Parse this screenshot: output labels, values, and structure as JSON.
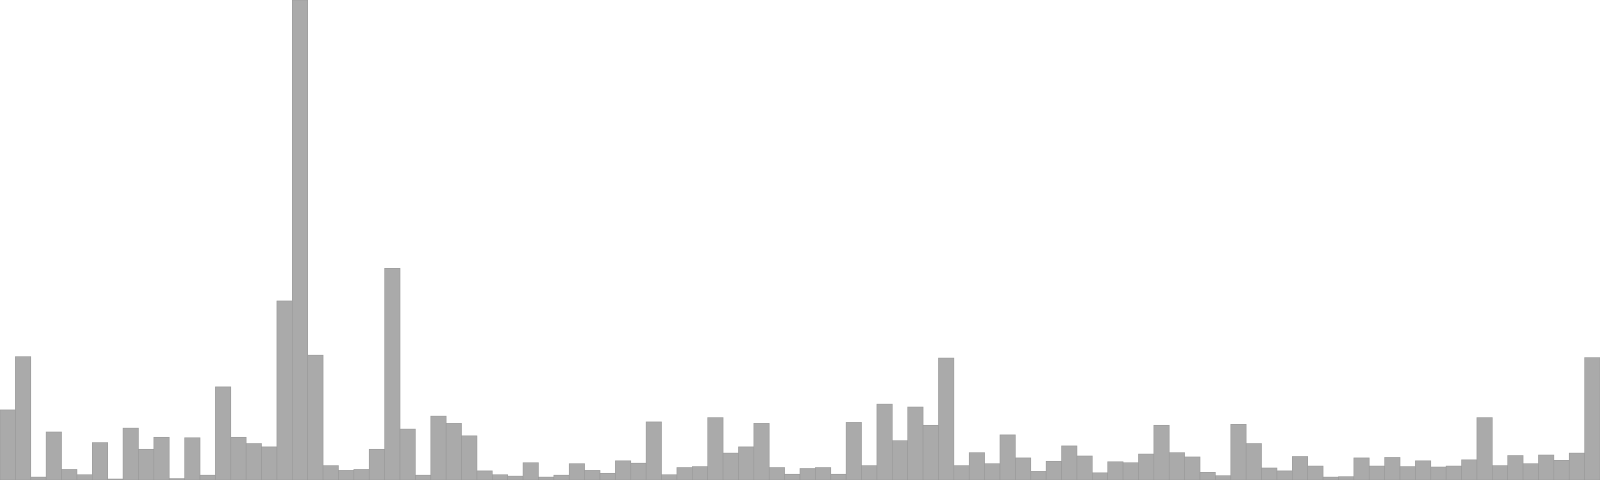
{
  "chart_data": {
    "type": "bar",
    "title": "",
    "xlabel": "",
    "ylabel": "",
    "ylim": [
      0,
      100
    ],
    "grid": false,
    "legend": "none",
    "bar_color": "#aaaaaa",
    "edge_color": "#999999",
    "values": [
      14.6,
      25.7,
      0.6,
      10.0,
      2.2,
      1.1,
      7.8,
      0.2,
      10.8,
      6.4,
      8.9,
      0.3,
      8.8,
      1.0,
      19.4,
      8.9,
      7.6,
      6.9,
      37.3,
      100.0,
      26.0,
      3.0,
      2.0,
      2.2,
      6.4,
      44.1,
      10.6,
      1.0,
      13.3,
      11.8,
      9.2,
      1.9,
      1.1,
      0.8,
      3.6,
      0.6,
      1.0,
      3.4,
      2.0,
      1.4,
      4.0,
      3.5,
      12.1,
      1.1,
      2.6,
      2.8,
      13.0,
      5.6,
      6.9,
      11.8,
      2.6,
      1.2,
      2.4,
      2.6,
      1.2,
      12.0,
      3.0,
      15.8,
      8.2,
      15.2,
      11.4,
      25.4,
      3.0,
      5.7,
      3.4,
      9.4,
      4.6,
      1.8,
      3.9,
      7.1,
      5.0,
      1.5,
      3.8,
      3.6,
      5.4,
      11.4,
      5.7,
      4.8,
      1.6,
      0.9,
      11.6,
      7.6,
      2.5,
      1.9,
      4.9,
      2.9,
      0.6,
      0.7,
      4.6,
      2.9,
      4.7,
      2.8,
      4.0,
      2.7,
      2.9,
      4.2,
      13.0,
      3.0,
      5.1,
      3.4,
      5.2,
      4.1,
      5.6,
      25.5
    ]
  }
}
